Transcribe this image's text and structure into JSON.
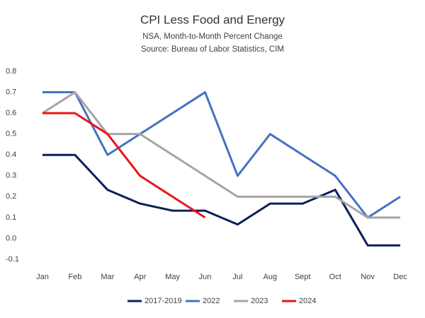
{
  "chart_data": {
    "type": "line",
    "title": "CPI Less Food and Energy",
    "subtitle": [
      "NSA, Month-to-Month Percent Change",
      "Source: Bureau of Labor Statistics, CIM"
    ],
    "categories": [
      "Jan",
      "Feb",
      "Mar",
      "Apr",
      "May",
      "Jun",
      "Jul",
      "Aug",
      "Sept",
      "Oct",
      "Nov",
      "Dec"
    ],
    "series": [
      {
        "name": "2017-2019",
        "color": "#0d1f5a",
        "values": [
          0.4,
          0.4,
          0.233,
          0.167,
          0.133,
          0.133,
          0.067,
          0.167,
          0.167,
          0.233,
          -0.033,
          -0.033
        ]
      },
      {
        "name": "2022",
        "color": "#4472c4",
        "values": [
          0.7,
          0.7,
          0.4,
          0.5,
          0.6,
          0.7,
          0.3,
          0.5,
          0.4,
          0.3,
          0.1,
          0.2
        ]
      },
      {
        "name": "2023",
        "color": "#a5a5a5",
        "values": [
          0.6,
          0.7,
          0.5,
          0.5,
          0.4,
          0.3,
          0.2,
          0.2,
          0.2,
          0.2,
          0.1,
          0.1
        ]
      },
      {
        "name": "2024",
        "color": "#e8161b",
        "values": [
          0.6,
          0.6,
          0.5,
          0.3,
          0.2,
          0.1,
          null,
          null,
          null,
          null,
          null,
          null
        ]
      }
    ],
    "ylim": [
      -0.1,
      0.8
    ],
    "yticks": [
      -0.1,
      {
        "value": 0,
        "label": "0.0"
      },
      0.1,
      0.2,
      0.3,
      0.4,
      0.5,
      0.6,
      0.7,
      0.8
    ],
    "grid": false,
    "legend": "bottom"
  }
}
